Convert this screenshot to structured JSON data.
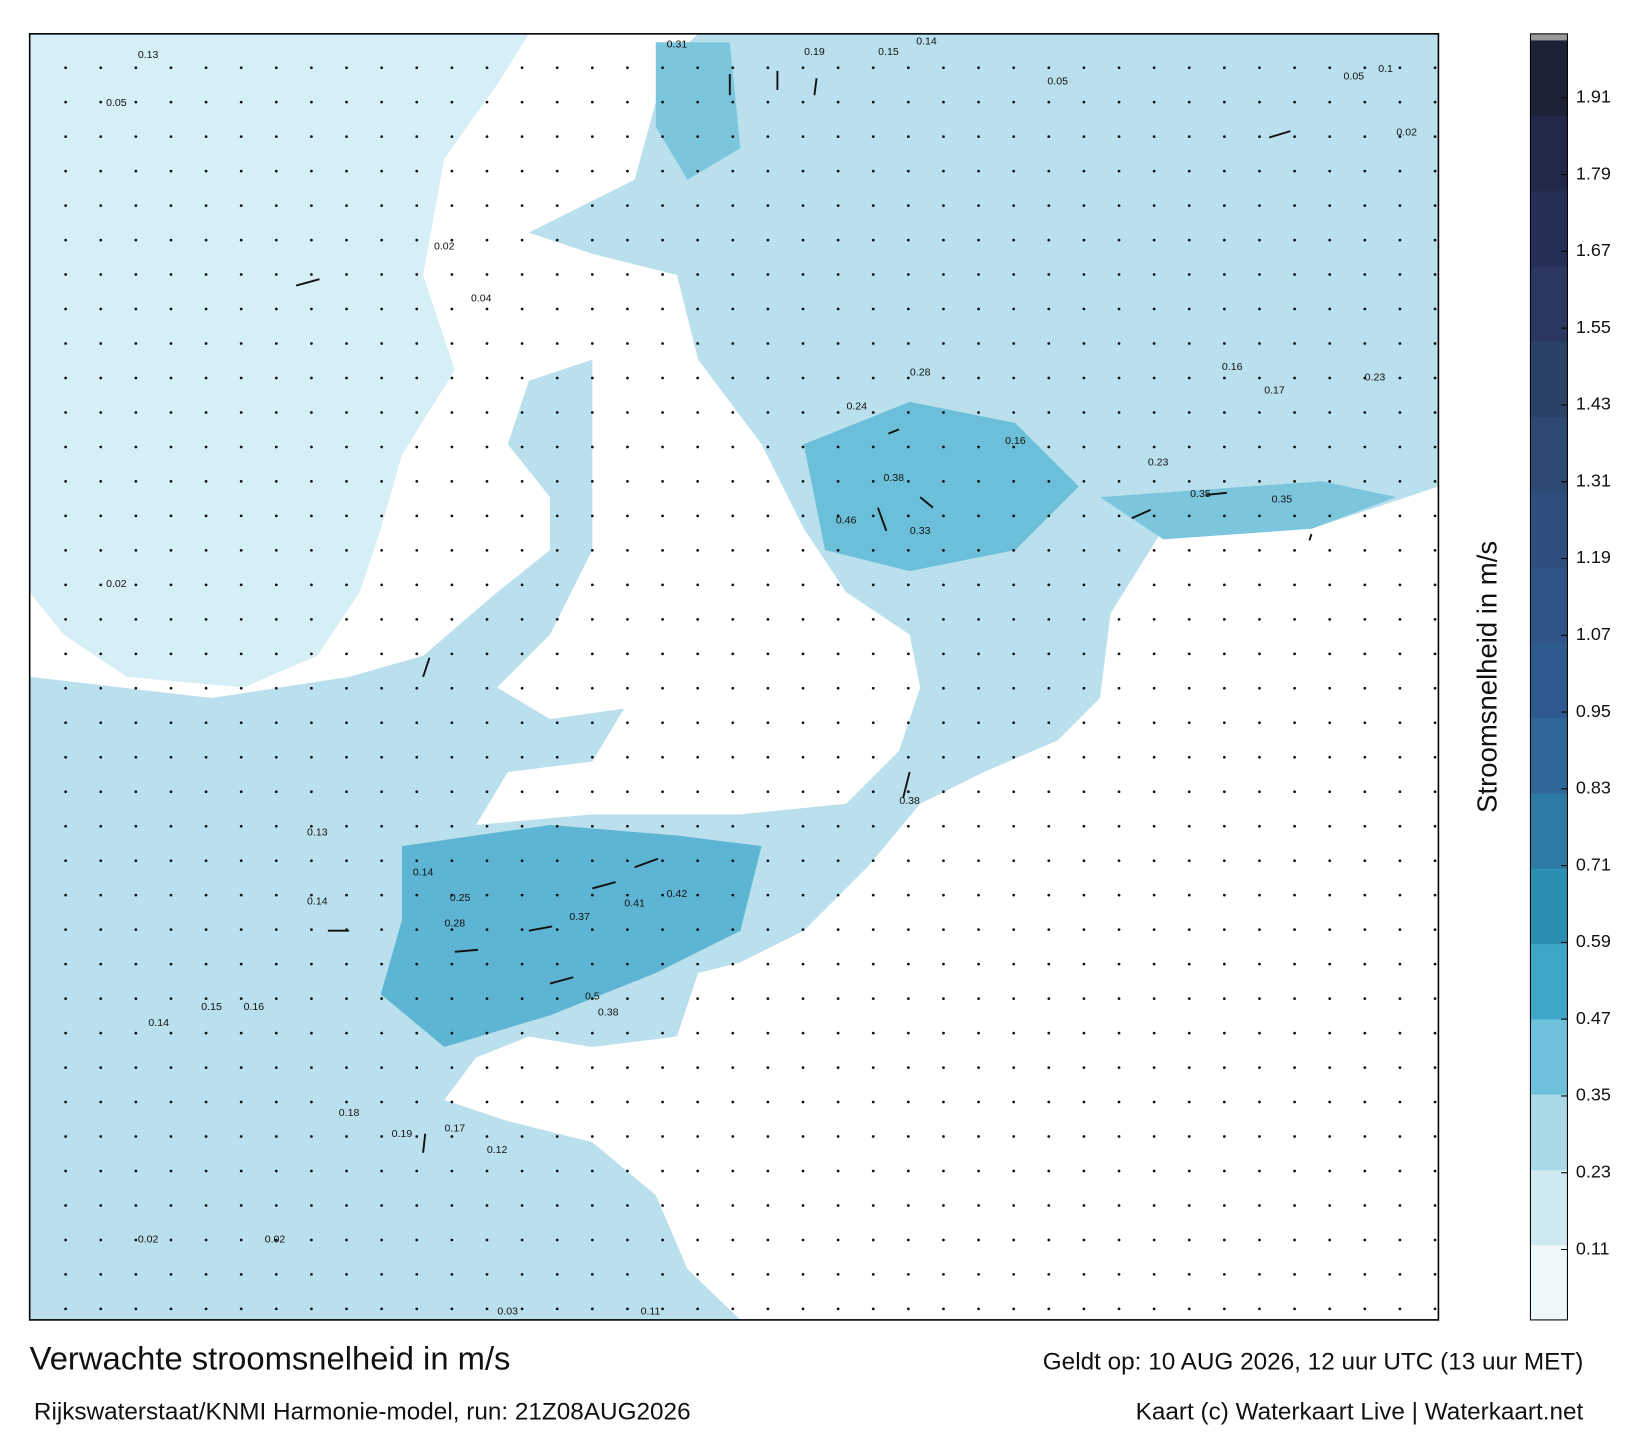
{
  "map": {
    "title": "Verwachte stroomsnelheid in m/s",
    "subtitle": "Rijkswaterstaat/KNMI Harmonie-model, run: 21Z08AUG2026",
    "valid": "Geldt op: 10 AUG 2026, 12 uur UTC (13 uur MET)",
    "credit": "Kaart (c) Waterkaart Live | Waterkaart.net",
    "colorbar": {
      "label": "Stroomsnelheid in m/s",
      "lim": [
        0,
        2
      ],
      "ticks": [
        0.11,
        0.23,
        0.35,
        0.47,
        0.59,
        0.71,
        0.83,
        0.95,
        1.07,
        1.19,
        1.31,
        1.43,
        1.55,
        1.67,
        1.79,
        1.91
      ],
      "colors": [
        "#eef7fa",
        "#cfe9f1",
        "#a9d8e7",
        "#6fc0da",
        "#3ea7c9",
        "#2a8fb3",
        "#2d7aa3",
        "#2f6796",
        "#2e5a8e",
        "#2f5488",
        "#2e4e7e",
        "#2d4a72",
        "#2b4268",
        "#2a3861",
        "#262f58",
        "#222848",
        "#1e2237"
      ]
    },
    "speed_labels": [
      0.31,
      0.19,
      0.15,
      0.14,
      0.05,
      0.24,
      0.28,
      0.38,
      0.46,
      0.33,
      0.35,
      0.35,
      0.16,
      0.23,
      0.38,
      0.37,
      0.41,
      0.42,
      0.5,
      0.38,
      0.14,
      0.25,
      0.28,
      0.13,
      0.14,
      0.15,
      0.16,
      0.14,
      0.18,
      0.19,
      0.17,
      0.12,
      0.16,
      0.17,
      0.23,
      0.13,
      0.05,
      0.02,
      0.05,
      0.1,
      0.02,
      0.04,
      0.02,
      0.02,
      0.02,
      0.03,
      0.11
    ]
  }
}
